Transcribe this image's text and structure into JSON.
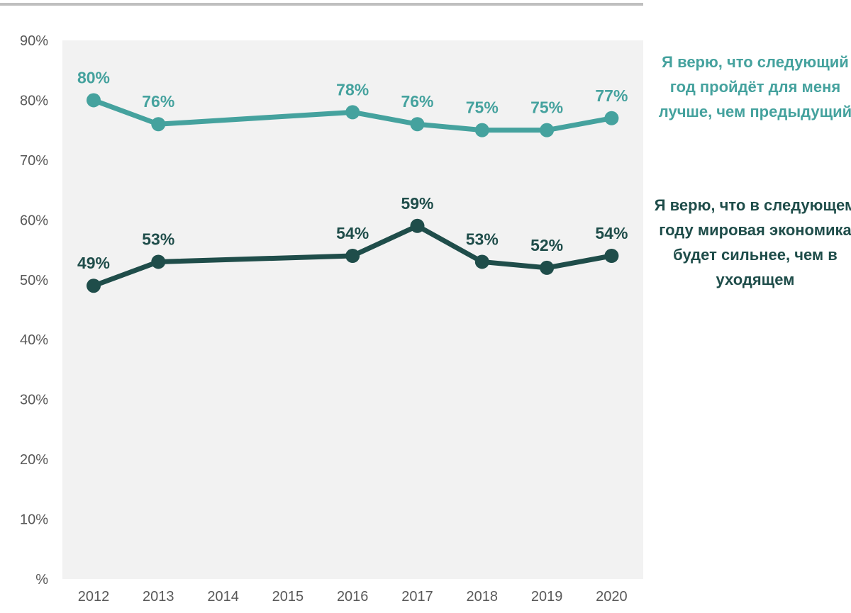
{
  "colors": {
    "series_1": "#45A29E",
    "series_2": "#1F4D4A",
    "plot_bg": "#F2F2F2",
    "top_rule": "#BFBFBF",
    "tick_text": "#595959"
  },
  "chart_data": {
    "type": "line",
    "title": "",
    "xlabel": "",
    "ylabel": "",
    "categories": [
      "2012",
      "2013",
      "2014",
      "2015",
      "2016",
      "2017",
      "2018",
      "2019",
      "2020"
    ],
    "ylim": [
      0,
      90
    ],
    "yticks": [
      {
        "value": 0,
        "label": "%"
      },
      {
        "value": 10,
        "label": "10%"
      },
      {
        "value": 20,
        "label": "20%"
      },
      {
        "value": 30,
        "label": "30%"
      },
      {
        "value": 40,
        "label": "40%"
      },
      {
        "value": 50,
        "label": "50%"
      },
      {
        "value": 60,
        "label": "60%"
      },
      {
        "value": 70,
        "label": "70%"
      },
      {
        "value": 80,
        "label": "80%"
      },
      {
        "value": 90,
        "label": "90%"
      }
    ],
    "grid": false,
    "legend_position": "right",
    "series": [
      {
        "name": "Я верю, что следующий год пройдёт для меня лучше, чем предыдущий",
        "color": "#45A29E",
        "values": [
          80,
          76,
          null,
          null,
          78,
          76,
          75,
          75,
          77
        ],
        "labels": [
          "80%",
          "76%",
          "",
          "",
          "78%",
          "76%",
          "75%",
          "75%",
          "77%"
        ]
      },
      {
        "name": "Я верю, что в следующем году мировая экономика будет сильнее, чем в уходящем",
        "color": "#1F4D4A",
        "values": [
          49,
          53,
          null,
          null,
          54,
          59,
          53,
          52,
          54
        ],
        "labels": [
          "49%",
          "53%",
          "",
          "",
          "54%",
          "59%",
          "53%",
          "52%",
          "54%"
        ]
      }
    ]
  }
}
